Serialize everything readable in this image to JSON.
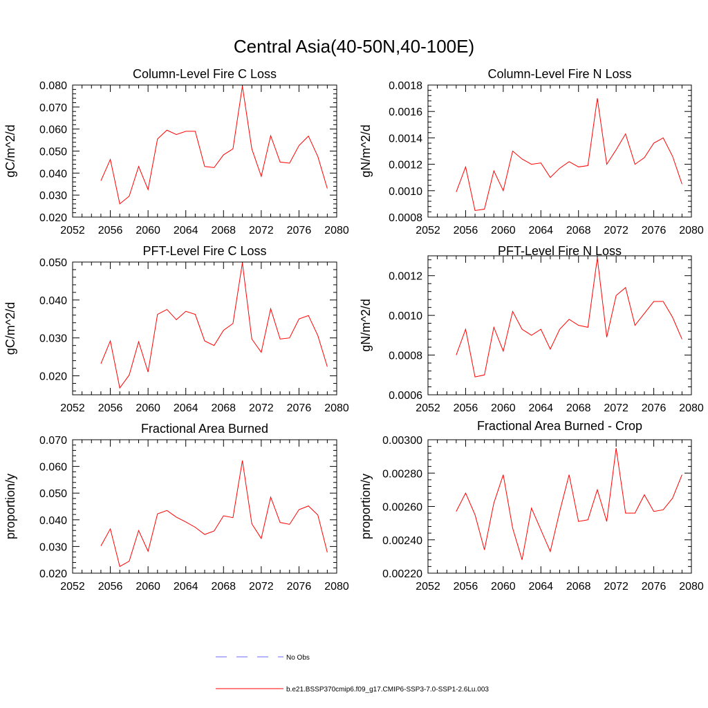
{
  "figure": {
    "title": "Central Asia(40-50N,40-100E)"
  },
  "chart_data": [
    {
      "type": "line",
      "title": "Column-Level Fire C Loss",
      "xlabel": "",
      "ylabel": "gC/m^2/d",
      "xlim": [
        2052,
        2080
      ],
      "ylim": [
        0.02,
        0.08
      ],
      "xticks": [
        2052,
        2056,
        2060,
        2064,
        2068,
        2072,
        2076,
        2080
      ],
      "xtick_labels": [
        "2052",
        "2056",
        "2060",
        "2064",
        "2068",
        "2072",
        "2076",
        "2080"
      ],
      "yticks": [
        0.02,
        0.03,
        0.04,
        0.05,
        0.06,
        0.07,
        0.08
      ],
      "ytick_labels": [
        "0.020",
        "0.030",
        "0.040",
        "0.050",
        "0.060",
        "0.070",
        "0.080"
      ],
      "series": [
        {
          "color": "#ff0000",
          "x": [
            2055,
            2056,
            2057,
            2058,
            2059,
            2060,
            2061,
            2062,
            2063,
            2064,
            2065,
            2066,
            2067,
            2068,
            2069,
            2070,
            2071,
            2072,
            2073,
            2074,
            2075,
            2076,
            2077,
            2078,
            2079
          ],
          "y": [
            0.0365,
            0.0462,
            0.026,
            0.0295,
            0.043,
            0.0325,
            0.0555,
            0.0595,
            0.0575,
            0.059,
            0.059,
            0.043,
            0.0425,
            0.0483,
            0.051,
            0.0795,
            0.051,
            0.0385,
            0.057,
            0.045,
            0.0445,
            0.0525,
            0.0568,
            0.0475,
            0.033
          ]
        }
      ]
    },
    {
      "type": "line",
      "title": "Column-Level Fire N Loss",
      "xlabel": "",
      "ylabel": "gN/m^2/d",
      "xlim": [
        2052,
        2080
      ],
      "ylim": [
        0.0008,
        0.0018
      ],
      "xticks": [
        2052,
        2056,
        2060,
        2064,
        2068,
        2072,
        2076,
        2080
      ],
      "xtick_labels": [
        "2052",
        "2056",
        "2060",
        "2064",
        "2068",
        "2072",
        "2076",
        "2080"
      ],
      "yticks": [
        0.0008,
        0.001,
        0.0012,
        0.0014,
        0.0016,
        0.0018
      ],
      "ytick_labels": [
        "0.0008",
        "0.0010",
        "0.0012",
        "0.0014",
        "0.0016",
        "0.0018"
      ],
      "series": [
        {
          "color": "#ff0000",
          "x": [
            2055,
            2056,
            2057,
            2058,
            2059,
            2060,
            2061,
            2062,
            2063,
            2064,
            2065,
            2066,
            2067,
            2068,
            2069,
            2070,
            2071,
            2072,
            2073,
            2074,
            2075,
            2076,
            2077,
            2078,
            2079
          ],
          "y": [
            0.00099,
            0.00118,
            0.00085,
            0.00086,
            0.00115,
            0.001,
            0.0013,
            0.00124,
            0.0012,
            0.00121,
            0.0011,
            0.00117,
            0.00122,
            0.00118,
            0.00119,
            0.0017,
            0.0012,
            0.00131,
            0.00143,
            0.0012,
            0.00125,
            0.00136,
            0.0014,
            0.00126,
            0.00105
          ]
        }
      ]
    },
    {
      "type": "line",
      "title": "PFT-Level Fire C Loss",
      "xlabel": "",
      "ylabel": "gC/m^2/d",
      "xlim": [
        2052,
        2080
      ],
      "ylim": [
        0.015,
        0.05
      ],
      "xticks": [
        2052,
        2056,
        2060,
        2064,
        2068,
        2072,
        2076,
        2080
      ],
      "xtick_labels": [
        "2052",
        "2056",
        "2060",
        "2064",
        "2068",
        "2072",
        "2076",
        "2080"
      ],
      "yticks": [
        0.02,
        0.03,
        0.04,
        0.05
      ],
      "ytick_labels": [
        "0.020",
        "0.030",
        "0.040",
        "0.050"
      ],
      "series": [
        {
          "color": "#ff0000",
          "x": [
            2055,
            2056,
            2057,
            2058,
            2059,
            2060,
            2061,
            2062,
            2063,
            2064,
            2065,
            2066,
            2067,
            2068,
            2069,
            2070,
            2071,
            2072,
            2073,
            2074,
            2075,
            2076,
            2077,
            2078,
            2079
          ],
          "y": [
            0.0232,
            0.0292,
            0.0168,
            0.0202,
            0.029,
            0.021,
            0.0362,
            0.0375,
            0.0348,
            0.037,
            0.0362,
            0.0292,
            0.028,
            0.032,
            0.0338,
            0.0498,
            0.0297,
            0.0262,
            0.0377,
            0.0297,
            0.03,
            0.035,
            0.0359,
            0.0306,
            0.0224
          ]
        }
      ]
    },
    {
      "type": "line",
      "title": "PFT-Level Fire N Loss",
      "xlabel": "",
      "ylabel": "gN/m^2/d",
      "xlim": [
        2052,
        2080
      ],
      "ylim": [
        0.0006,
        0.0013
      ],
      "xticks": [
        2052,
        2056,
        2060,
        2064,
        2068,
        2072,
        2076,
        2080
      ],
      "xtick_labels": [
        "2052",
        "2056",
        "2060",
        "2064",
        "2068",
        "2072",
        "2076",
        "2080"
      ],
      "yticks": [
        0.0006,
        0.0008,
        0.001,
        0.0012
      ],
      "ytick_labels": [
        "0.0006",
        "0.0008",
        "0.0010",
        "0.0012"
      ],
      "series": [
        {
          "color": "#ff0000",
          "x": [
            2055,
            2056,
            2057,
            2058,
            2059,
            2060,
            2061,
            2062,
            2063,
            2064,
            2065,
            2066,
            2067,
            2068,
            2069,
            2070,
            2071,
            2072,
            2073,
            2074,
            2075,
            2076,
            2077,
            2078,
            2079
          ],
          "y": [
            0.0008,
            0.00093,
            0.00069,
            0.0007,
            0.00094,
            0.00082,
            0.00102,
            0.00093,
            0.0009,
            0.00093,
            0.00083,
            0.00093,
            0.00098,
            0.00095,
            0.00094,
            0.00129,
            0.00089,
            0.0011,
            0.00114,
            0.00095,
            0.00101,
            0.00107,
            0.00107,
            0.00099,
            0.00088
          ]
        }
      ]
    },
    {
      "type": "line",
      "title": "Fractional Area Burned",
      "xlabel": "",
      "ylabel": "proportion/y",
      "xlim": [
        2052,
        2080
      ],
      "ylim": [
        0.02,
        0.07
      ],
      "xticks": [
        2052,
        2056,
        2060,
        2064,
        2068,
        2072,
        2076,
        2080
      ],
      "xtick_labels": [
        "2052",
        "2056",
        "2060",
        "2064",
        "2068",
        "2072",
        "2076",
        "2080"
      ],
      "yticks": [
        0.02,
        0.03,
        0.04,
        0.05,
        0.06,
        0.07
      ],
      "ytick_labels": [
        "0.020",
        "0.030",
        "0.040",
        "0.050",
        "0.060",
        "0.070"
      ],
      "series": [
        {
          "color": "#ff0000",
          "x": [
            2055,
            2056,
            2057,
            2058,
            2059,
            2060,
            2061,
            2062,
            2063,
            2064,
            2065,
            2066,
            2067,
            2068,
            2069,
            2070,
            2071,
            2072,
            2073,
            2074,
            2075,
            2076,
            2077,
            2078,
            2079
          ],
          "y": [
            0.0302,
            0.0366,
            0.0225,
            0.0245,
            0.036,
            0.0282,
            0.0422,
            0.0435,
            0.041,
            0.0392,
            0.0372,
            0.0345,
            0.0358,
            0.0415,
            0.0408,
            0.0622,
            0.0385,
            0.033,
            0.0485,
            0.039,
            0.0383,
            0.0438,
            0.0452,
            0.0418,
            0.0278
          ]
        }
      ]
    },
    {
      "type": "line",
      "title": "Fractional Area Burned - Crop",
      "xlabel": "",
      "ylabel": "proportion/y",
      "xlim": [
        2052,
        2080
      ],
      "ylim": [
        0.0022,
        0.003
      ],
      "xticks": [
        2052,
        2056,
        2060,
        2064,
        2068,
        2072,
        2076,
        2080
      ],
      "xtick_labels": [
        "2052",
        "2056",
        "2060",
        "2064",
        "2068",
        "2072",
        "2076",
        "2080"
      ],
      "yticks": [
        0.0022,
        0.0024,
        0.0026,
        0.0028,
        0.003
      ],
      "ytick_labels": [
        "0.00220",
        "0.00240",
        "0.00260",
        "0.00280",
        "0.00300"
      ],
      "series": [
        {
          "color": "#ff0000",
          "x": [
            2055,
            2056,
            2057,
            2058,
            2059,
            2060,
            2061,
            2062,
            2063,
            2064,
            2065,
            2066,
            2067,
            2068,
            2069,
            2070,
            2071,
            2072,
            2073,
            2074,
            2075,
            2076,
            2077,
            2078,
            2079
          ],
          "y": [
            0.00257,
            0.00268,
            0.00255,
            0.00234,
            0.00262,
            0.00279,
            0.00247,
            0.00228,
            0.00259,
            0.00246,
            0.00233,
            0.00257,
            0.00279,
            0.00251,
            0.00252,
            0.0027,
            0.00251,
            0.00295,
            0.00256,
            0.00256,
            0.00267,
            0.00257,
            0.00258,
            0.00265,
            0.00279
          ]
        }
      ]
    }
  ],
  "legend": {
    "items": [
      {
        "label": "No Obs",
        "color": "#6a6aff",
        "style": "dashed"
      },
      {
        "label": "b.e21.BSSP370cmip6.f09_g17.CMIP6-SSP3-7.0-SSP1-2.6Lu.003",
        "color": "#ff0000",
        "style": "solid"
      }
    ]
  }
}
